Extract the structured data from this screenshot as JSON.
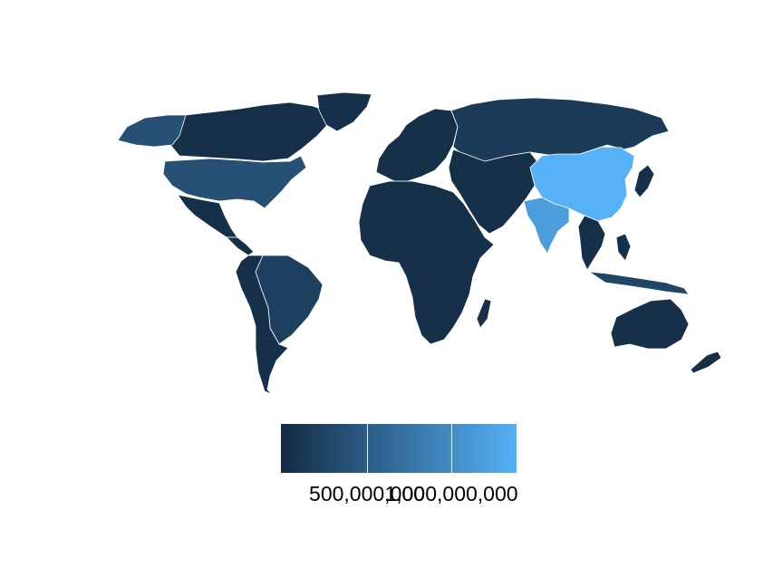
{
  "map": {
    "land_color_low": "#132B43",
    "land_color_high": "#56B1F7",
    "border_color": "#ffffff",
    "regions": [
      {
        "name": "china",
        "fraction": 1.0
      },
      {
        "name": "india",
        "fraction": 0.85
      },
      {
        "name": "usa",
        "fraction": 0.28
      },
      {
        "name": "brazil",
        "fraction": 0.16
      },
      {
        "name": "russia",
        "fraction": 0.12
      },
      {
        "name": "indonesia",
        "fraction": 0.2
      },
      {
        "name": "rest",
        "fraction": 0.04
      }
    ]
  },
  "legend": {
    "color_low": "#132B43",
    "color_high": "#56B1F7",
    "ticks": [
      "500,000,000",
      "1,000,000,000"
    ]
  }
}
